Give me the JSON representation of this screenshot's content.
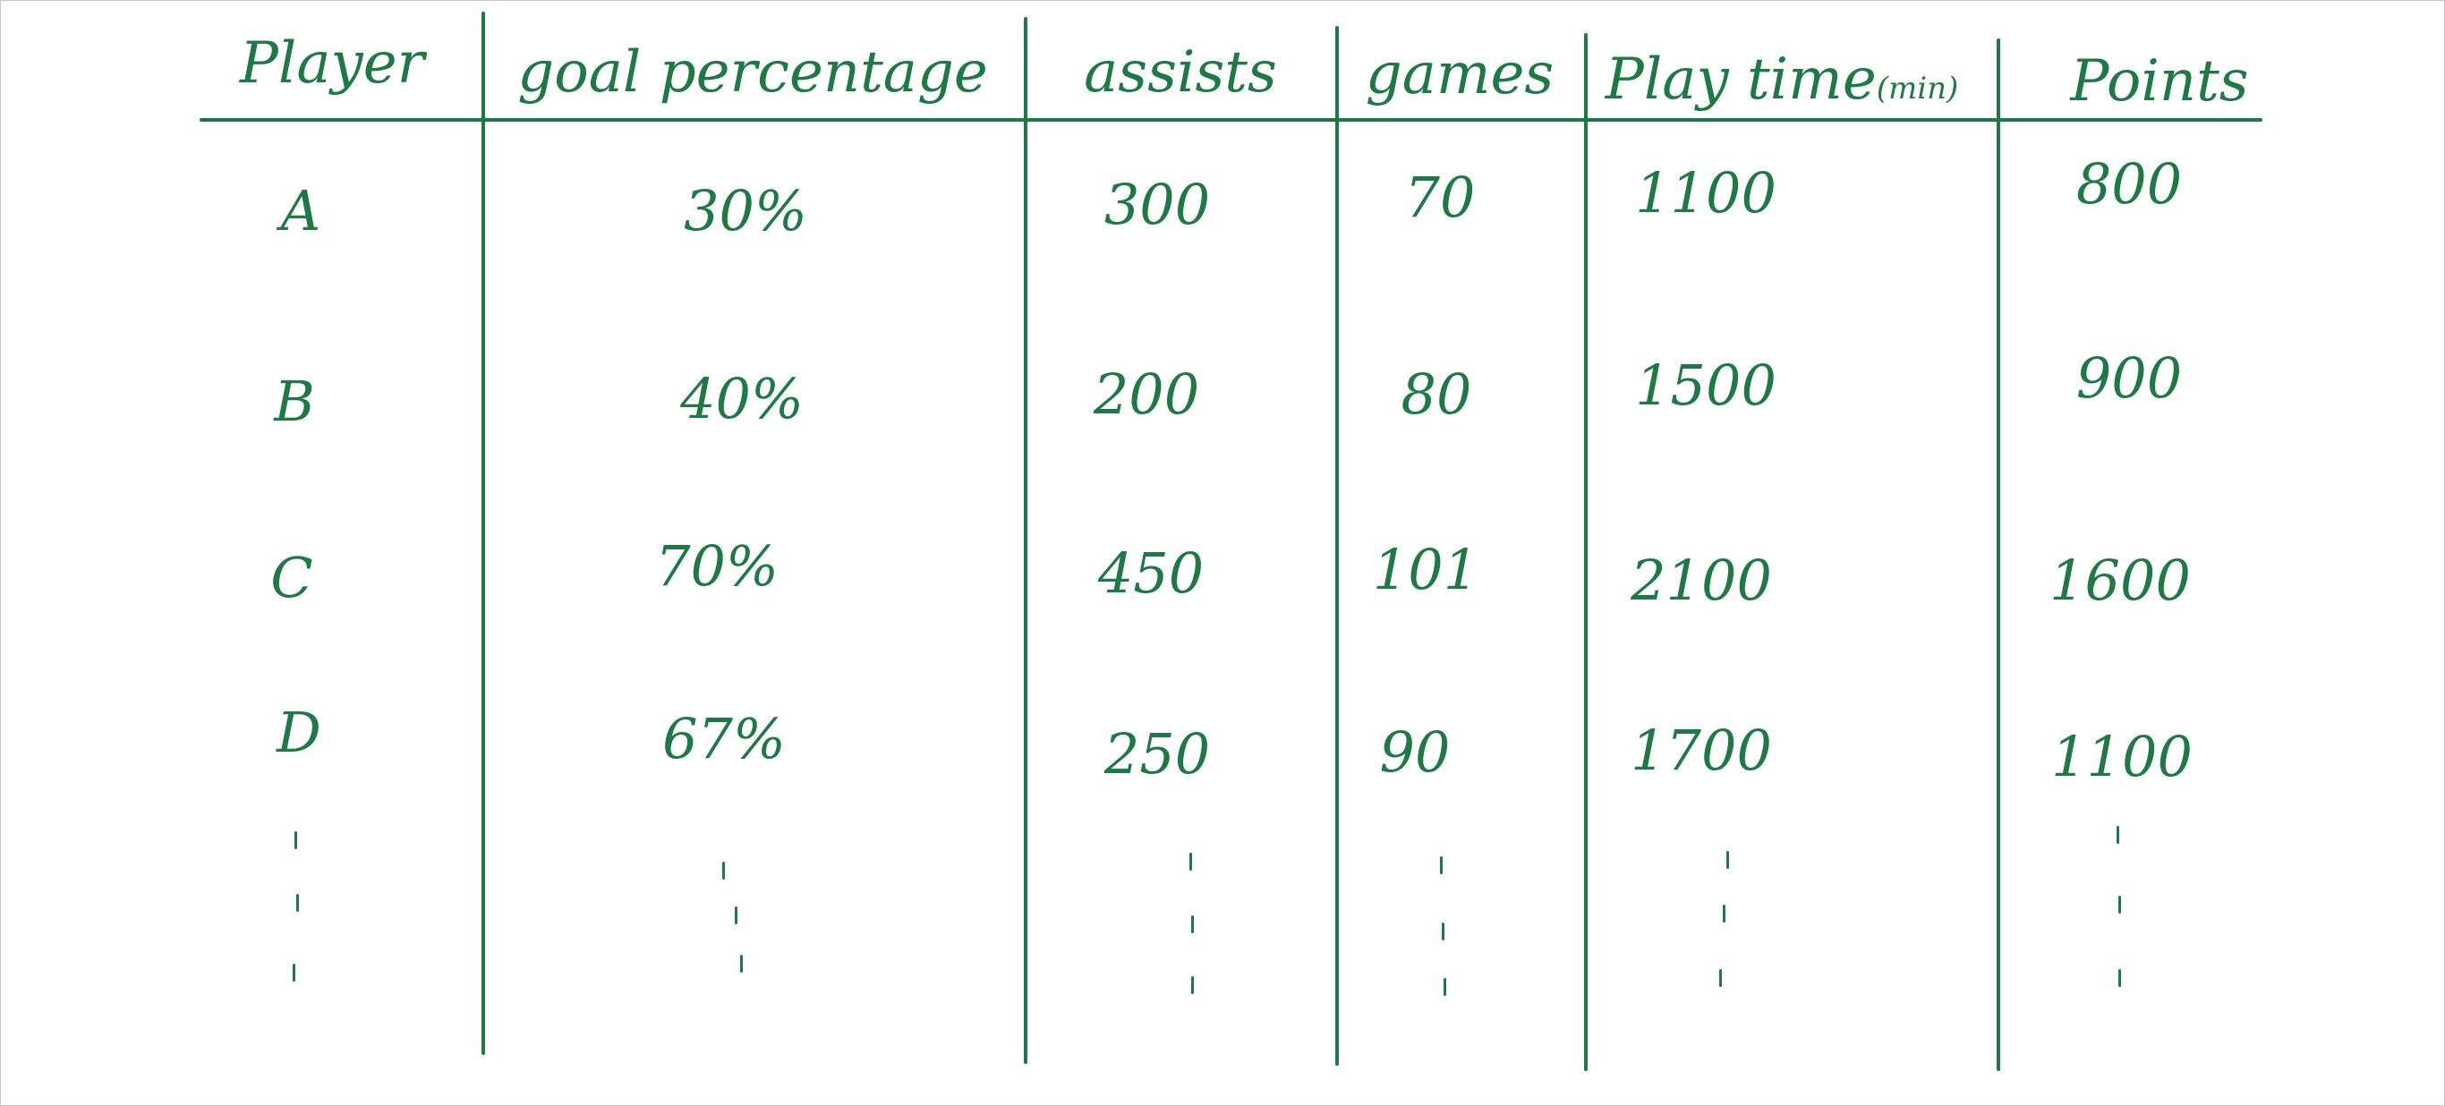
{
  "ink_color": "#1d7a44",
  "table": {
    "headers": {
      "player": "Player",
      "goal_percentage": "goal percentage",
      "assists": "assists",
      "games": "games",
      "play_time": "Play time",
      "play_time_unit": "(min)",
      "points": "Points"
    },
    "rows": [
      {
        "player": "A",
        "goal_percentage": "30%",
        "assists": "300",
        "games": "70",
        "play_time": "1100",
        "points": "800"
      },
      {
        "player": "B",
        "goal_percentage": "40%",
        "assists": "200",
        "games": "80",
        "play_time": "1500",
        "points": "900"
      },
      {
        "player": "C",
        "goal_percentage": "70%",
        "assists": "450",
        "games": "101",
        "play_time": "2100",
        "points": "1600"
      },
      {
        "player": "D",
        "goal_percentage": "67%",
        "assists": "250",
        "games": "90",
        "play_time": "1700",
        "points": "1100"
      }
    ]
  }
}
